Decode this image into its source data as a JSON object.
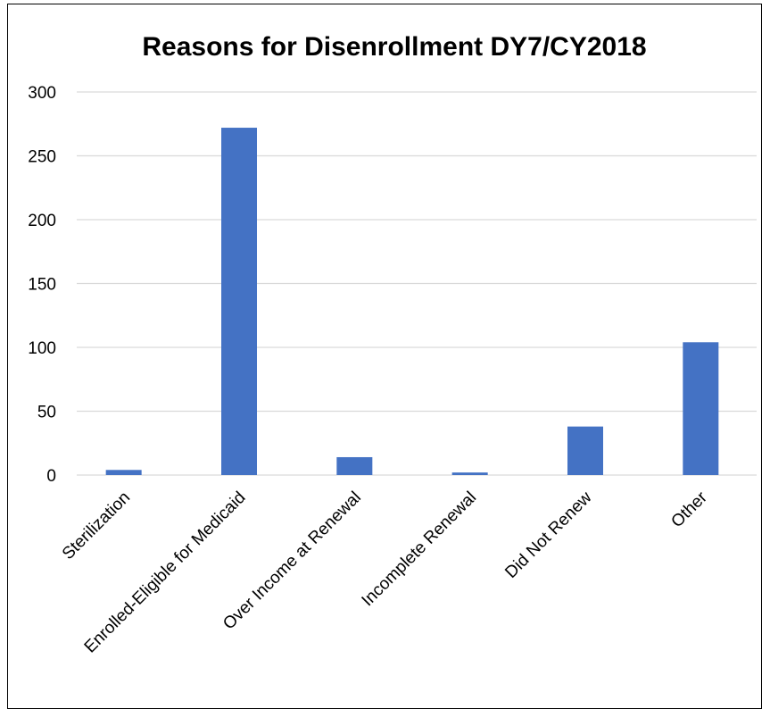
{
  "chart_data": {
    "type": "bar",
    "title": "Reasons for Disenrollment DY7/CY2018",
    "xlabel": "",
    "ylabel": "",
    "categories": [
      "Sterilization",
      "Enrolled-Eligible for Medicaid",
      "Over Income at Renewal",
      "Incomplete Renewal",
      "Did Not Renew",
      "Other"
    ],
    "values": [
      4,
      272,
      14,
      2,
      38,
      104
    ],
    "ylim": [
      0,
      300
    ],
    "yticks": [
      "0",
      "50",
      "100",
      "150",
      "200",
      "250",
      "300"
    ],
    "grid": true,
    "legend": "none",
    "bar_color": "#4472C4",
    "grid_color": "#d9d9d9"
  }
}
